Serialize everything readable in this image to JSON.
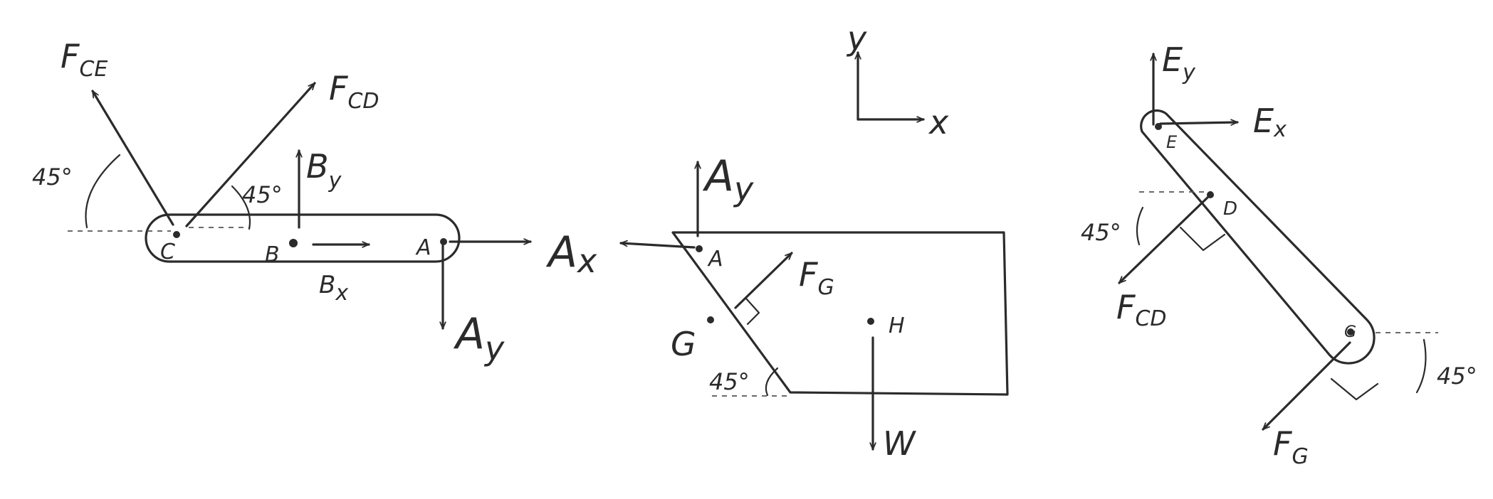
{
  "bar_cab": {
    "forces": {
      "F_CE": {
        "main": "F",
        "sub": "CE"
      },
      "F_CD": {
        "main": "F",
        "sub": "CD"
      },
      "B_y": {
        "main": "B",
        "sub": "y"
      },
      "B_x": {
        "main": "B",
        "sub": "x"
      },
      "A_x": {
        "main": "A",
        "sub": "x"
      },
      "A_y": {
        "main": "A",
        "sub": "y"
      }
    },
    "points": {
      "C": "C",
      "B": "B",
      "A": "A"
    },
    "angles": [
      "45°",
      "45°"
    ]
  },
  "axes": {
    "y": "y",
    "x": "x"
  },
  "plate": {
    "forces": {
      "A_y": {
        "main": "A",
        "sub": "y"
      },
      "F_G": {
        "main": "F",
        "sub": "G"
      },
      "W": "W"
    },
    "points": {
      "A": "A",
      "G": "G",
      "H": "H"
    },
    "angles": [
      "45°"
    ]
  },
  "link_ed": {
    "forces": {
      "E_y": {
        "main": "E",
        "sub": "y"
      },
      "E_x": {
        "main": "E",
        "sub": "x"
      },
      "F_CD": {
        "main": "F",
        "sub": "CD"
      },
      "F_G": {
        "main": "F",
        "sub": "G"
      }
    },
    "points": {
      "E": "E",
      "D": "D",
      "G": "G"
    },
    "angles": [
      "45°",
      "45°"
    ]
  }
}
